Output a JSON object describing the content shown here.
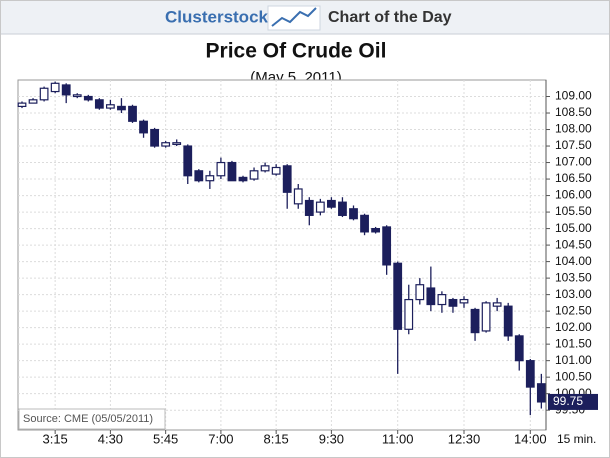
{
  "header": {
    "brand": "Clusterstock",
    "tagline": "Chart of the Day"
  },
  "chart_data": {
    "type": "candlestick",
    "title": "Price Of Crude Oil",
    "subtitle": "(May 5, 2011)",
    "source": "Source: CME (05/05/2011)",
    "x_unit_label": "15 min.",
    "categories": [
      null,
      null,
      null,
      "3:15",
      null,
      null,
      null,
      null,
      "4:30",
      null,
      null,
      null,
      null,
      "5:45",
      null,
      null,
      null,
      null,
      "7:00",
      null,
      null,
      null,
      null,
      "8:15",
      null,
      null,
      null,
      null,
      "9:30",
      null,
      null,
      null,
      null,
      null,
      "11:00",
      null,
      null,
      null,
      null,
      null,
      "12:30",
      null,
      null,
      null,
      null,
      null,
      "14:00",
      null
    ],
    "open": [
      108.7,
      108.8,
      108.9,
      109.15,
      109.35,
      109.0,
      109.0,
      108.9,
      108.65,
      108.7,
      108.7,
      108.25,
      108.0,
      107.5,
      107.55,
      107.5,
      106.75,
      106.45,
      106.6,
      107.0,
      106.55,
      106.5,
      106.75,
      106.65,
      106.9,
      105.75,
      105.85,
      105.5,
      105.85,
      105.8,
      105.6,
      105.4,
      105.0,
      105.05,
      103.95,
      101.95,
      102.85,
      103.2,
      102.7,
      102.85,
      102.75,
      102.55,
      101.9,
      102.65,
      102.65,
      101.75,
      101.0,
      100.3
    ],
    "high": [
      108.85,
      108.95,
      109.3,
      109.45,
      109.4,
      109.1,
      109.05,
      108.95,
      108.9,
      108.95,
      108.75,
      108.3,
      108.05,
      107.65,
      107.7,
      107.55,
      106.8,
      106.75,
      107.15,
      107.05,
      106.6,
      106.85,
      107.0,
      106.95,
      106.95,
      106.35,
      105.95,
      105.9,
      105.95,
      105.95,
      105.7,
      105.45,
      105.05,
      105.1,
      104.0,
      103.3,
      103.5,
      103.85,
      103.1,
      102.9,
      102.95,
      102.6,
      102.8,
      102.9,
      102.75,
      101.8,
      101.05,
      100.6
    ],
    "low": [
      108.65,
      108.8,
      108.85,
      109.1,
      108.8,
      108.95,
      108.85,
      108.6,
      108.6,
      108.5,
      108.2,
      107.75,
      107.45,
      107.45,
      107.5,
      106.35,
      106.4,
      106.2,
      106.5,
      106.45,
      106.4,
      106.45,
      106.7,
      106.6,
      105.6,
      105.6,
      105.1,
      105.4,
      105.6,
      105.35,
      105.25,
      104.8,
      104.85,
      103.6,
      100.6,
      101.8,
      102.7,
      102.5,
      102.45,
      102.45,
      102.6,
      101.6,
      101.85,
      102.5,
      101.6,
      100.7,
      99.35,
      99.55
    ],
    "close": [
      108.8,
      108.9,
      109.25,
      109.4,
      109.05,
      109.05,
      108.9,
      108.65,
      108.75,
      108.6,
      108.25,
      107.9,
      107.5,
      107.6,
      107.6,
      106.6,
      106.45,
      106.6,
      107.0,
      106.45,
      106.45,
      106.75,
      106.9,
      106.85,
      106.1,
      106.2,
      105.4,
      105.8,
      105.65,
      105.4,
      105.3,
      104.9,
      104.9,
      103.9,
      101.95,
      102.85,
      103.3,
      102.7,
      103.0,
      102.65,
      102.85,
      101.85,
      102.75,
      102.75,
      101.75,
      101.0,
      100.2,
      99.75
    ],
    "up_color": "#ffffff",
    "down_color": "#1c1f5c",
    "last_price": 99.75,
    "ylim": [
      98.9,
      109.5
    ],
    "yticks": [
      {
        "value": 99.5,
        "label": "99.50"
      },
      {
        "value": 100,
        "label": "100.00"
      },
      {
        "value": 100.5,
        "label": "100.50"
      },
      {
        "value": 101,
        "label": "101.00"
      },
      {
        "value": 101.5,
        "label": "101.50"
      },
      {
        "value": 102,
        "label": "102.00"
      },
      {
        "value": 102.5,
        "label": "102.50"
      },
      {
        "value": 103,
        "label": "103.00"
      },
      {
        "value": 103.5,
        "label": "103.50"
      },
      {
        "value": 104,
        "label": "104.00"
      },
      {
        "value": 104.5,
        "label": "104.50"
      },
      {
        "value": 105,
        "label": "105.00"
      },
      {
        "value": 105.5,
        "label": "105.50"
      },
      {
        "value": 106,
        "label": "106.00"
      },
      {
        "value": 106.5,
        "label": "106.50"
      },
      {
        "value": 107,
        "label": "107.00"
      },
      {
        "value": 107.5,
        "label": "107.50"
      },
      {
        "value": 108,
        "label": "108.00"
      },
      {
        "value": 108.5,
        "label": "108.50"
      },
      {
        "value": 109,
        "label": "109.00"
      }
    ],
    "grid": true
  }
}
